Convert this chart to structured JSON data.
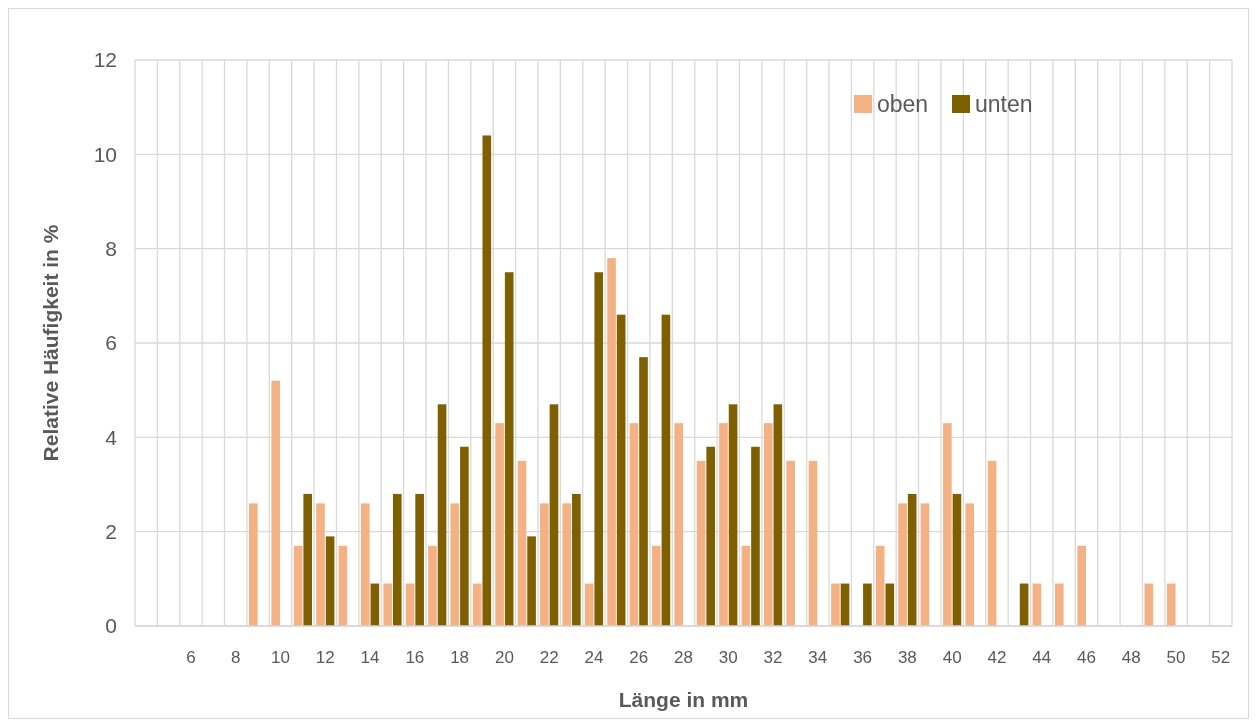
{
  "chart_data": {
    "type": "bar",
    "xlabel": "Länge in mm",
    "ylabel": "Relative Häufigkeit in %",
    "categories": [
      null,
      null,
      "6",
      null,
      "8",
      null,
      "10",
      null,
      "12",
      null,
      "14",
      null,
      "16",
      null,
      "18",
      null,
      "20",
      null,
      "22",
      null,
      "24",
      null,
      "26",
      null,
      "28",
      null,
      "30",
      null,
      "32",
      null,
      "34",
      null,
      "36",
      null,
      "38",
      null,
      "40",
      null,
      "42",
      null,
      "44",
      null,
      "46",
      null,
      "48",
      null,
      "50",
      null,
      "52"
    ],
    "series": [
      {
        "name": "oben",
        "color": "#f4b183",
        "values": [
          0,
          0,
          0,
          0,
          0,
          2.6,
          5.2,
          1.7,
          2.6,
          1.7,
          2.6,
          0.9,
          0.9,
          1.7,
          2.6,
          0.9,
          4.3,
          3.5,
          2.6,
          2.6,
          0.9,
          7.8,
          4.3,
          1.7,
          4.3,
          3.5,
          4.3,
          1.7,
          4.3,
          3.5,
          3.5,
          0.9,
          0,
          1.7,
          2.6,
          2.6,
          4.3,
          2.6,
          3.5,
          0,
          0.9,
          0.9,
          1.7,
          0,
          0,
          0.9,
          0.9,
          0,
          0
        ]
      },
      {
        "name": "unten",
        "color": "#7f6000",
        "values": [
          0,
          0,
          0,
          0,
          0,
          0,
          0,
          2.8,
          1.9,
          0,
          0.9,
          2.8,
          2.8,
          4.7,
          3.8,
          10.4,
          7.5,
          1.9,
          4.7,
          2.8,
          7.5,
          6.6,
          5.7,
          6.6,
          0,
          3.8,
          4.7,
          3.8,
          4.7,
          0,
          0,
          0.9,
          0.9,
          0.9,
          2.8,
          0,
          2.8,
          0,
          0,
          0.9,
          0,
          0,
          0,
          0,
          0,
          0,
          0,
          0,
          0
        ]
      }
    ],
    "ylim": [
      0,
      12
    ],
    "yticks": [
      0,
      2,
      4,
      6,
      8,
      10,
      12
    ],
    "grid": true,
    "legend": "top right"
  }
}
